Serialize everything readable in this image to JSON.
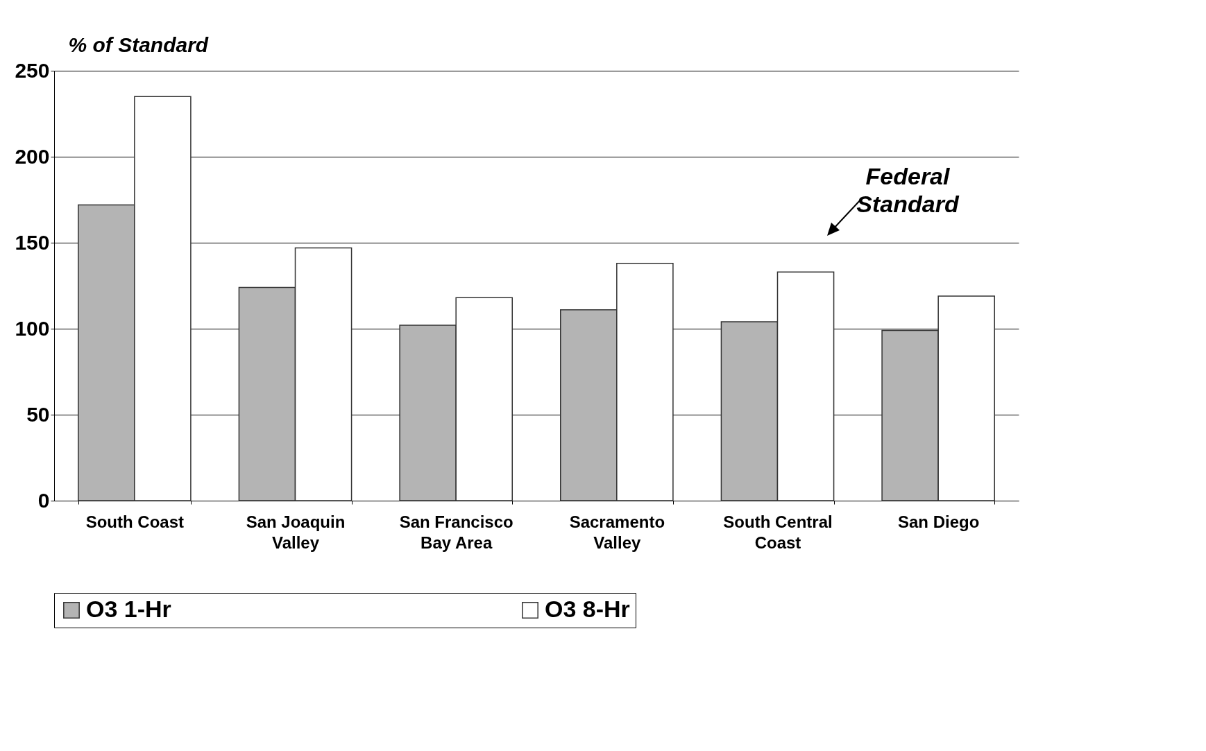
{
  "chart_data": {
    "type": "bar",
    "ylabel": "% of Standard",
    "categories": [
      "South Coast",
      "San Joaquin Valley",
      "San Francisco Bay Area",
      "Sacramento Valley",
      "South Central Coast",
      "San Diego"
    ],
    "series": [
      {
        "name": "O3 1-Hr",
        "color": "#b4b4b4",
        "values": [
          172,
          124,
          102,
          111,
          104,
          99
        ]
      },
      {
        "name": "O3 8-Hr",
        "color": "#ffffff",
        "values": [
          235,
          147,
          118,
          138,
          133,
          119
        ]
      }
    ],
    "ylim": [
      0,
      250
    ],
    "yticks": [
      0,
      50,
      100,
      150,
      200,
      250
    ],
    "grid": "y",
    "legend": "bottom",
    "annotations": [
      "Federal Standard"
    ]
  }
}
